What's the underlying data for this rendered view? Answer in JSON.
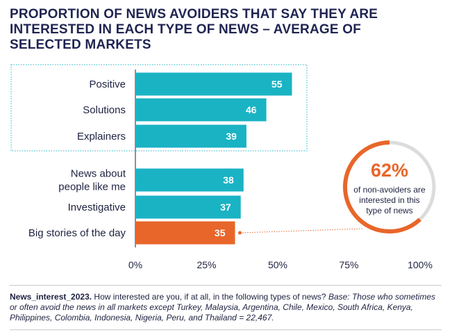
{
  "title": "PROPORTION OF NEWS AVOIDERS THAT SAY THEY ARE INTERESTED IN EACH TYPE OF NEWS – AVERAGE OF SELECTED MARKETS",
  "callout": {
    "value": "62%",
    "description": "of non-avoiders are interested in this type of news",
    "fraction": 0.62
  },
  "footnote": {
    "variable": "News_interest_2023.",
    "question": " How interested are you, if at all, in the following types of news? ",
    "base": "Base: Those who sometimes or often avoid the news in all markets except Turkey, Malaysia, Argentina, Chile, Mexico, South Africa, Kenya, Philippines, Colombia, Indonesia, Nigeria, Peru, and Thailand = 22,467."
  },
  "colors": {
    "bar": "#1ab3c4",
    "highlight": "#e8662a",
    "title": "#1f2451",
    "ring_track": "#dcdcdc"
  },
  "chart_data": {
    "type": "bar",
    "orientation": "horizontal",
    "categories": [
      "Positive",
      "Solutions",
      "Explainers",
      "News about people like me",
      "Investigative",
      "Big stories of the day"
    ],
    "category_lines": [
      [
        "Positive"
      ],
      [
        "Solutions"
      ],
      [
        "Explainers"
      ],
      [
        "News about",
        "people like me"
      ],
      [
        "Investigative"
      ],
      [
        "Big stories of the day"
      ]
    ],
    "values": [
      55,
      46,
      39,
      38,
      37,
      35
    ],
    "highlighted": [
      false,
      false,
      false,
      false,
      false,
      true
    ],
    "xlim": [
      0,
      100
    ],
    "xticks": [
      "0%",
      "25%",
      "50%",
      "75%",
      "100%"
    ],
    "xtick_values": [
      0,
      25,
      50,
      75,
      100
    ],
    "grouped_box": [
      "Positive",
      "Solutions",
      "Explainers"
    ],
    "grid": false
  }
}
